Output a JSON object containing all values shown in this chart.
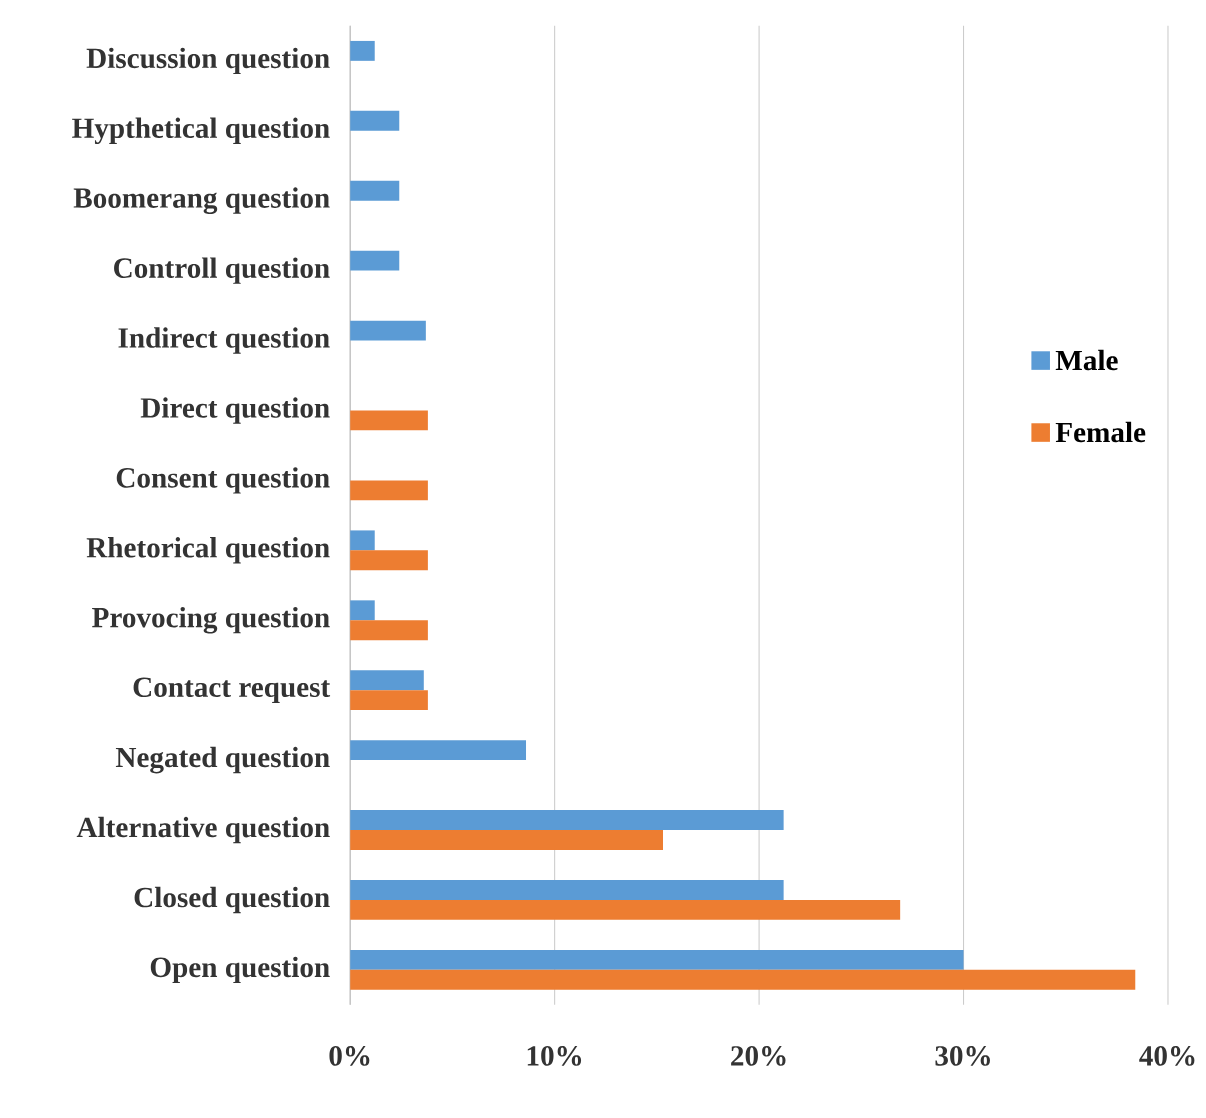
{
  "chart_data": {
    "type": "bar",
    "orientation": "horizontal",
    "categories": [
      "Discussion question",
      "Hypthetical question",
      "Boomerang question",
      "Controll question",
      "Indirect question",
      "Direct question",
      "Consent question",
      "Rhetorical question",
      "Provocing question",
      "Contact request",
      "Negated question",
      "Alternative question",
      "Closed question",
      "Open question"
    ],
    "series": [
      {
        "name": "Male",
        "color": "#5b9bd5",
        "values": [
          1.2,
          2.4,
          2.4,
          2.4,
          3.7,
          null,
          null,
          1.2,
          1.2,
          3.6,
          8.6,
          21.2,
          21.2,
          30.0
        ]
      },
      {
        "name": "Female",
        "color": "#ed7d31",
        "values": [
          null,
          null,
          null,
          null,
          null,
          3.8,
          3.8,
          3.8,
          3.8,
          3.8,
          null,
          15.3,
          26.9,
          38.4
        ]
      }
    ],
    "xlim": [
      0,
      40
    ],
    "xticks": [
      {
        "value": 0,
        "label": "0%"
      },
      {
        "value": 10,
        "label": "10%"
      },
      {
        "value": 20,
        "label": "20%"
      },
      {
        "value": 30,
        "label": "30%"
      },
      {
        "value": 40,
        "label": "40%"
      }
    ],
    "grid": "x",
    "legend": "right"
  }
}
